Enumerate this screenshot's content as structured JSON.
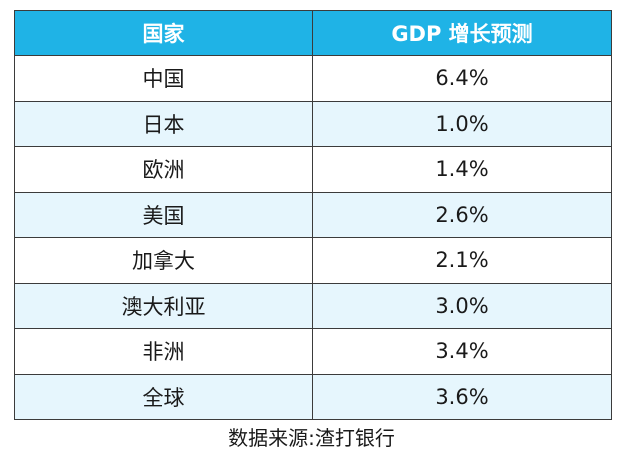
{
  "chart_data": {
    "type": "table",
    "columns": [
      "国家",
      "GDP 增长预测"
    ],
    "rows": [
      {
        "country": "中国",
        "value": "6.4%"
      },
      {
        "country": "日本",
        "value": "1.0%"
      },
      {
        "country": "欧洲",
        "value": "1.4%"
      },
      {
        "country": "美国",
        "value": "2.6%"
      },
      {
        "country": "加拿大",
        "value": "2.1%"
      },
      {
        "country": "澳大利亚",
        "value": "3.0%"
      },
      {
        "country": "非洲",
        "value": "3.4%"
      },
      {
        "country": "全球",
        "value": "3.6%"
      }
    ],
    "source": "数据来源:渣打银行",
    "colors": {
      "header_bg": "#1fb3e6",
      "header_text": "#ffffff",
      "stripe_bg": "#e6f6fd",
      "border": "#3b3b3b"
    }
  }
}
